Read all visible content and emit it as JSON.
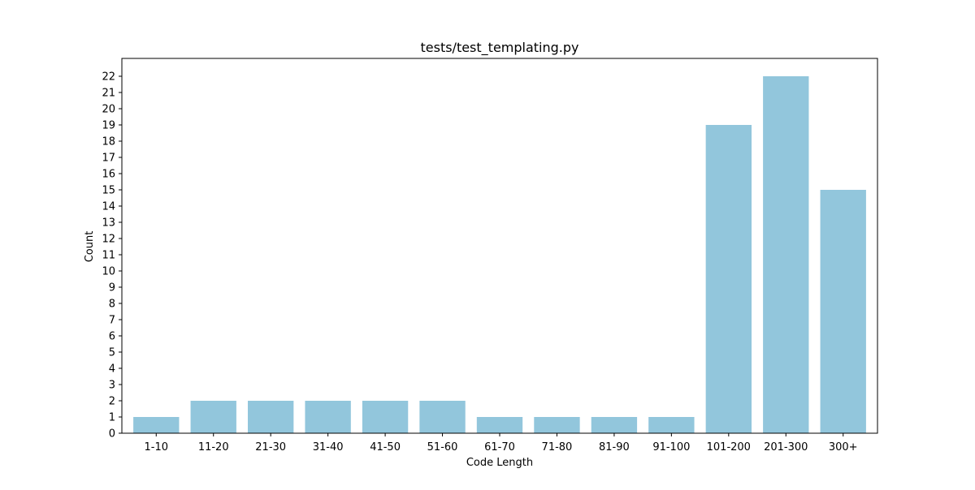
{
  "chart_data": {
    "type": "bar",
    "title": "tests/test_templating.py",
    "xlabel": "Code Length",
    "ylabel": "Count",
    "categories": [
      "1-10",
      "11-20",
      "21-30",
      "31-40",
      "41-50",
      "51-60",
      "61-70",
      "71-80",
      "81-90",
      "91-100",
      "101-200",
      "201-300",
      "300+"
    ],
    "values": [
      1,
      2,
      2,
      2,
      2,
      2,
      1,
      1,
      1,
      1,
      19,
      22,
      15
    ],
    "ylim": [
      0,
      23.1
    ],
    "yticks": [
      0,
      1,
      2,
      3,
      4,
      5,
      6,
      7,
      8,
      9,
      10,
      11,
      12,
      13,
      14,
      15,
      16,
      17,
      18,
      19,
      20,
      21,
      22
    ],
    "bar_color": "#92c6dc",
    "grid": false,
    "legend": "none"
  }
}
